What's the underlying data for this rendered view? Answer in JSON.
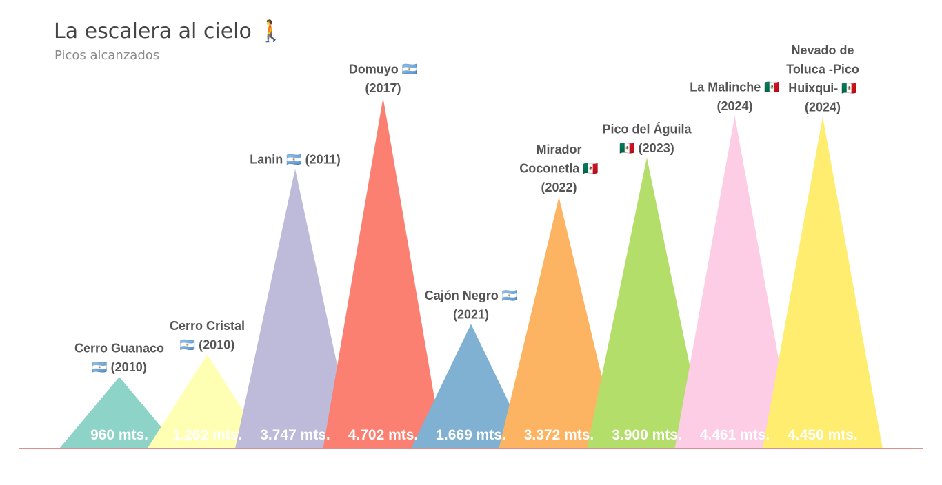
{
  "header": {
    "title": "La escalera al cielo",
    "title_icon": "hiker-icon",
    "subtitle": "Picos alcanzados"
  },
  "chart_data": {
    "type": "bar",
    "title": "La escalera al cielo",
    "subtitle": "Picos alcanzados",
    "categories": [
      "Cerro Guanaco",
      "Cerro Cristal",
      "Lanin",
      "Domuyo",
      "Cajón Negro",
      "Mirador Coconetla",
      "Pico del Águila",
      "La Malinche",
      "Nevado de Toluca -Pico Huixqui-"
    ],
    "values": [
      960,
      1262,
      3747,
      4702,
      1669,
      3372,
      3900,
      4461,
      4450
    ],
    "peaks": [
      {
        "label_lines": [
          "Cerro Guanaco",
          "🇦🇷 (2010)"
        ],
        "value": 960,
        "value_label": "960 mts.",
        "color": "#8dd3c7"
      },
      {
        "label_lines": [
          "Cerro Cristal",
          "🇦🇷 (2010)"
        ],
        "value": 1262,
        "value_label": "1.262 mts.",
        "color": "#ffffb3"
      },
      {
        "label_lines": [
          "Lanin 🇦🇷 (2011)"
        ],
        "value": 3747,
        "value_label": "3.747 mts.",
        "color": "#bebada"
      },
      {
        "label_lines": [
          "Domuyo 🇦🇷",
          "(2017)"
        ],
        "value": 4702,
        "value_label": "4.702 mts.",
        "color": "#fb8072"
      },
      {
        "label_lines": [
          "Cajón Negro 🇦🇷",
          "(2021)"
        ],
        "value": 1669,
        "value_label": "1.669 mts.",
        "color": "#80b1d3"
      },
      {
        "label_lines": [
          "Mirador",
          "Coconetla 🇲🇽",
          "(2022)"
        ],
        "value": 3372,
        "value_label": "3.372 mts.",
        "color": "#fdb462"
      },
      {
        "label_lines": [
          "Pico del Águila",
          "🇲🇽 (2023)"
        ],
        "value": 3900,
        "value_label": "3.900 mts.",
        "color": "#b3de69"
      },
      {
        "label_lines": [
          "La Malinche 🇲🇽",
          "(2024)"
        ],
        "value": 4461,
        "value_label": "4.461 mts.",
        "color": "#fccde5"
      },
      {
        "label_lines": [
          "Nevado de",
          "Toluca -Pico",
          "Huixqui- 🇲🇽",
          "(2024)"
        ],
        "value": 4450,
        "value_label": "4.450 mts.",
        "color": "#ffed6f"
      }
    ],
    "ylim": [
      0,
      4702
    ],
    "baseline_color": "#c0504d",
    "grid": false,
    "legend": "none"
  }
}
